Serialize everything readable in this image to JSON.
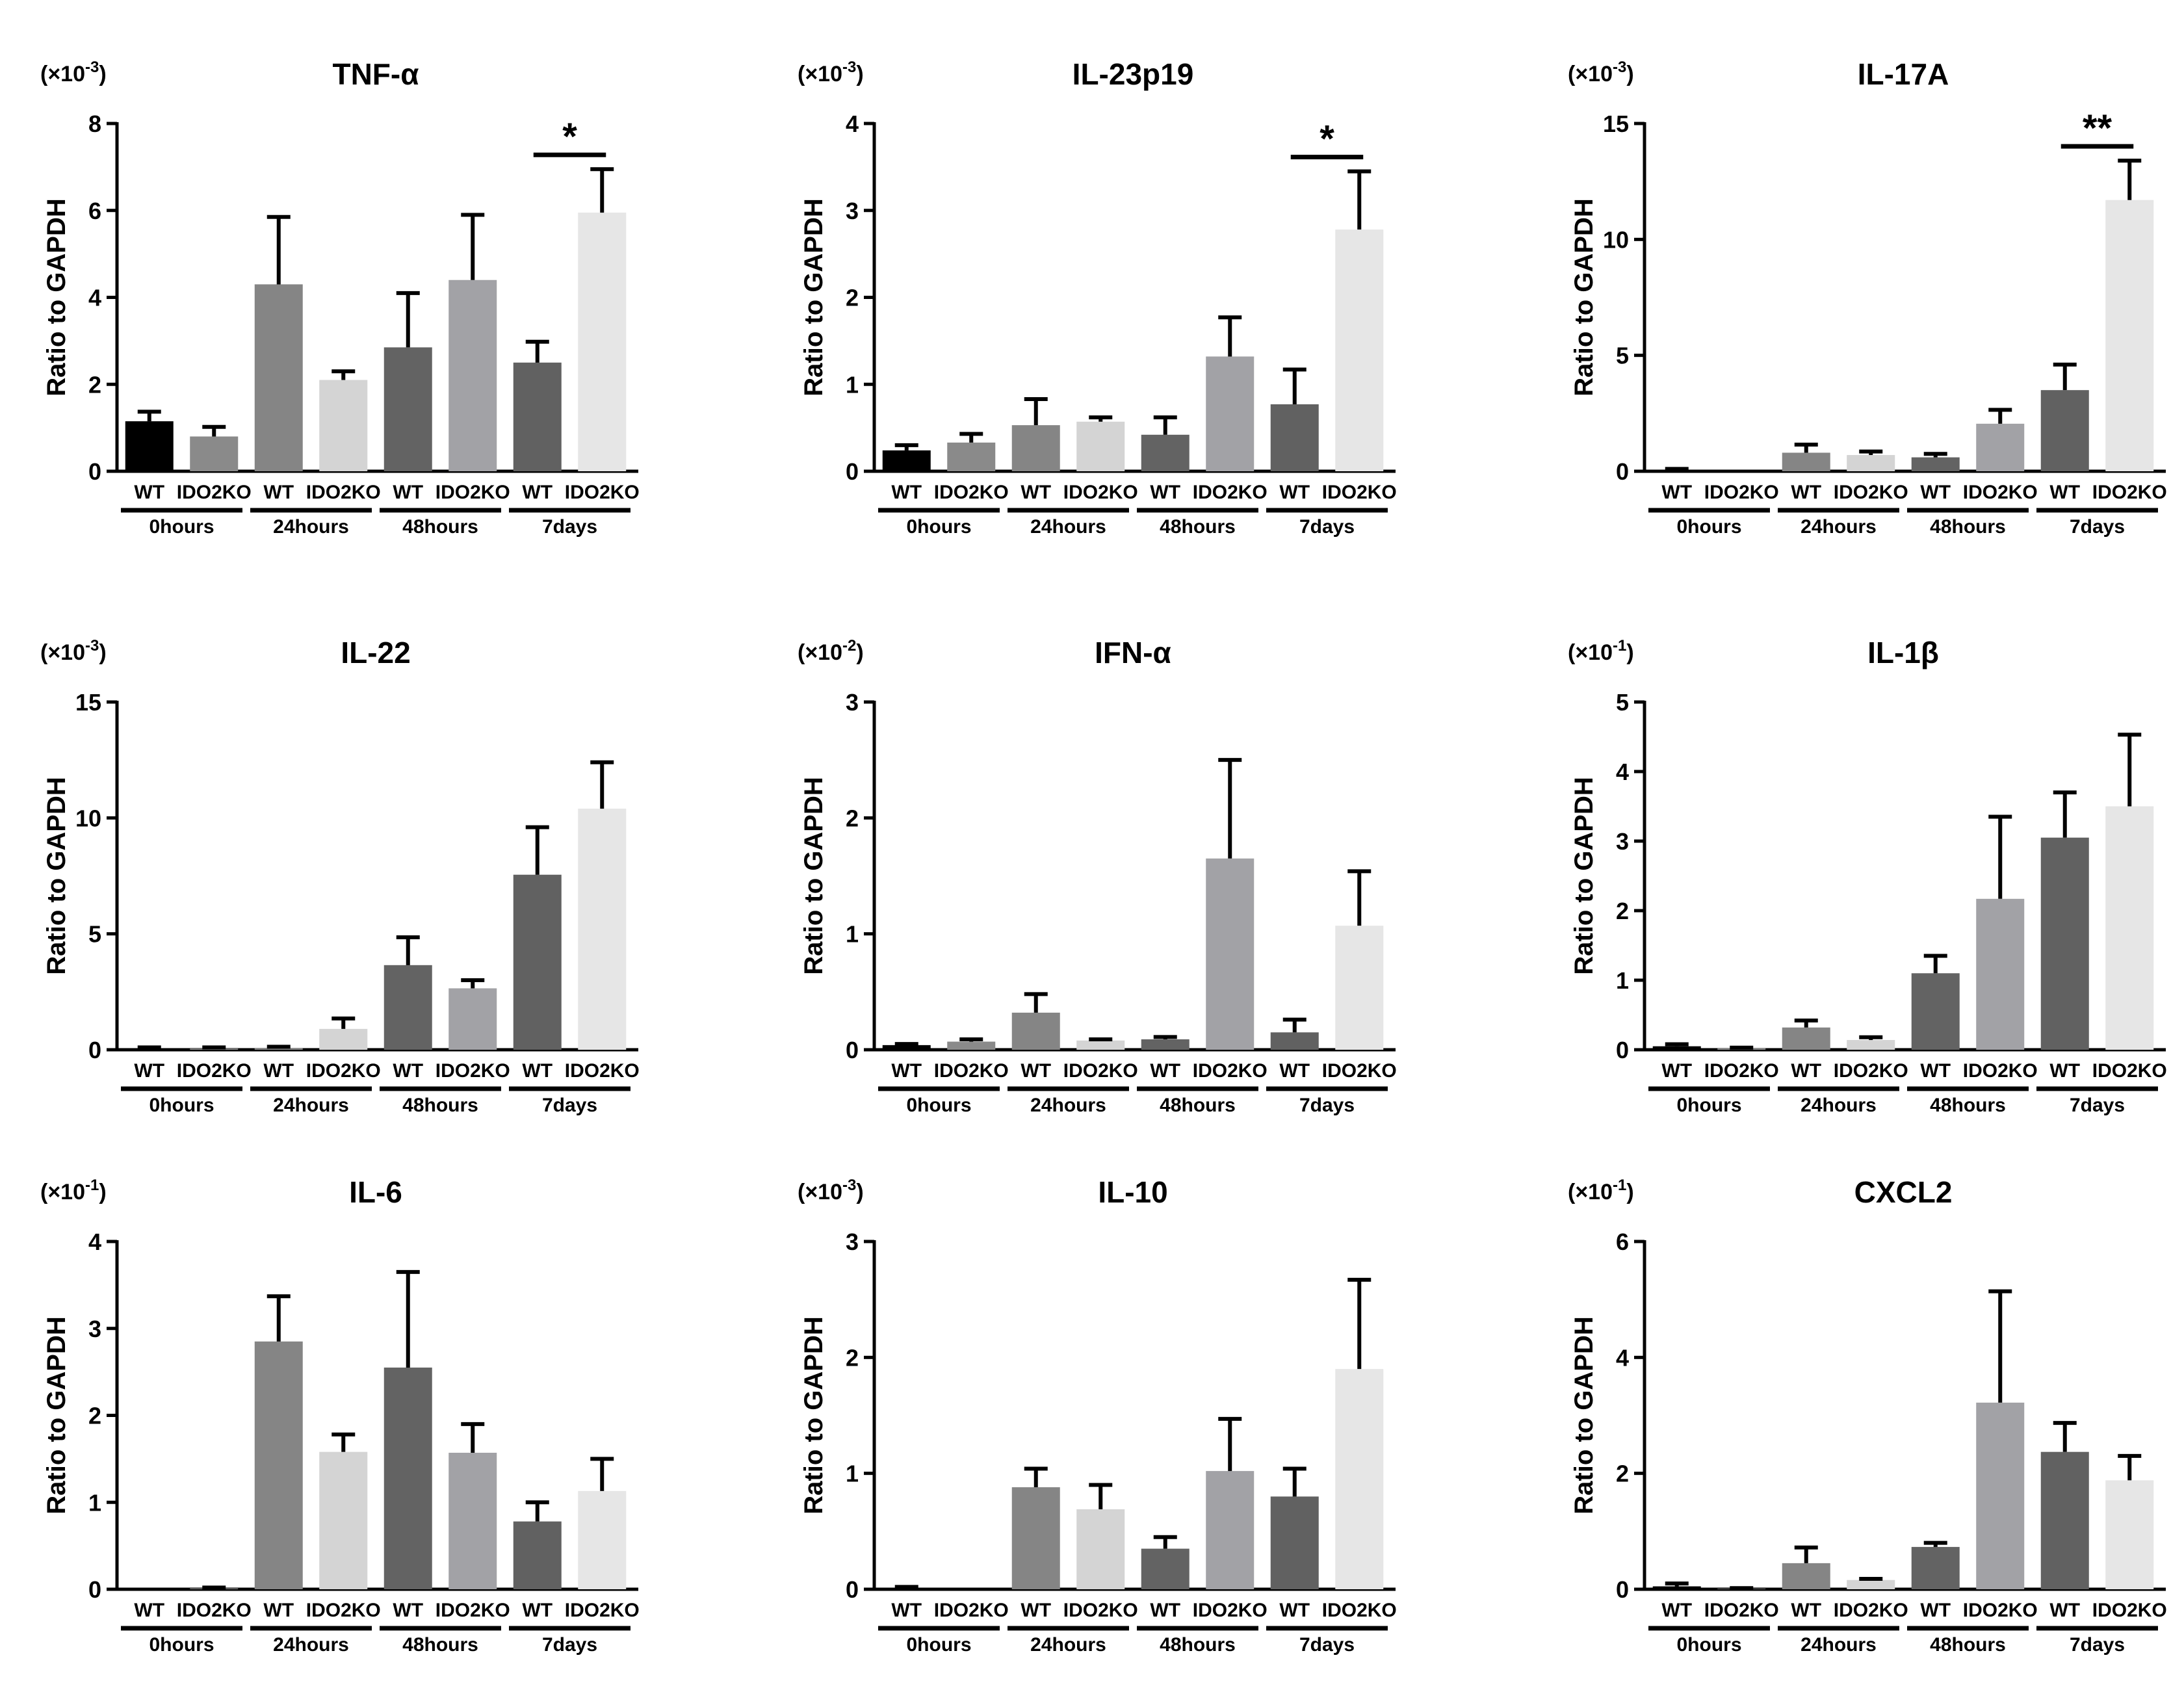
{
  "chart_data": [
    {
      "type": "bar",
      "title": "TNF-α",
      "scale_label": "(×10",
      "scale_exp": "-3",
      "ylabel": "Ratio to GAPDH",
      "ylim": [
        0,
        8
      ],
      "yticks": [
        "0",
        "2",
        "4",
        "6",
        "8"
      ],
      "categories": [
        "WT",
        "IDO2KO",
        "WT",
        "IDO2KO",
        "WT",
        "IDO2KO",
        "WT",
        "IDO2KO"
      ],
      "groups": [
        "0hours",
        "24hours",
        "48hours",
        "7days"
      ],
      "values": [
        1.15,
        0.8,
        4.3,
        2.1,
        2.85,
        4.4,
        2.5,
        5.95
      ],
      "errors": [
        0.22,
        0.22,
        1.55,
        0.2,
        1.25,
        1.5,
        0.48,
        1.0
      ],
      "significance": [
        {
          "bars": [
            6,
            7
          ],
          "label": "*"
        }
      ]
    },
    {
      "type": "bar",
      "title": "IL-23p19",
      "scale_label": "(×10",
      "scale_exp": "-3",
      "ylabel": "Ratio to GAPDH",
      "ylim": [
        0,
        4
      ],
      "yticks": [
        "0",
        "1",
        "2",
        "3",
        "4"
      ],
      "categories": [
        "WT",
        "IDO2KO",
        "WT",
        "IDO2KO",
        "WT",
        "IDO2KO",
        "WT",
        "IDO2KO"
      ],
      "groups": [
        "0hours",
        "24hours",
        "48hours",
        "7days"
      ],
      "values": [
        0.24,
        0.33,
        0.53,
        0.57,
        0.42,
        1.32,
        0.77,
        2.78
      ],
      "errors": [
        0.06,
        0.1,
        0.3,
        0.05,
        0.2,
        0.45,
        0.4,
        0.67
      ],
      "significance": [
        {
          "bars": [
            6,
            7
          ],
          "label": "*"
        }
      ]
    },
    {
      "type": "bar",
      "title": "IL-17A",
      "scale_label": "(×10",
      "scale_exp": "-3",
      "ylabel": "Ratio to GAPDH",
      "ylim": [
        0,
        15
      ],
      "yticks": [
        "0",
        "5",
        "10",
        "15"
      ],
      "categories": [
        "WT",
        "IDO2KO",
        "WT",
        "IDO2KO",
        "WT",
        "IDO2KO",
        "WT",
        "IDO2KO"
      ],
      "groups": [
        "0hours",
        "24hours",
        "48hours",
        "7days"
      ],
      "values": [
        0.05,
        0.0,
        0.8,
        0.7,
        0.6,
        2.05,
        3.5,
        11.7
      ],
      "errors": [
        0.05,
        0.0,
        0.35,
        0.15,
        0.15,
        0.6,
        1.1,
        1.7
      ],
      "significance": [
        {
          "bars": [
            6,
            7
          ],
          "label": "**"
        }
      ]
    },
    {
      "type": "bar",
      "title": "IL-22",
      "scale_label": "(×10",
      "scale_exp": "-3",
      "ylabel": "Ratio to GAPDH",
      "ylim": [
        0,
        15
      ],
      "yticks": [
        "0",
        "5",
        "10",
        "15"
      ],
      "categories": [
        "WT",
        "IDO2KO",
        "WT",
        "IDO2KO",
        "WT",
        "IDO2KO",
        "WT",
        "IDO2KO"
      ],
      "groups": [
        "0hours",
        "24hours",
        "48hours",
        "7days"
      ],
      "values": [
        0.05,
        0.05,
        0.08,
        0.9,
        3.65,
        2.65,
        7.55,
        10.4
      ],
      "errors": [
        0.05,
        0.05,
        0.05,
        0.45,
        1.2,
        0.35,
        2.05,
        2.0
      ],
      "significance": []
    },
    {
      "type": "bar",
      "title": "IFN-α",
      "scale_label": "(×10",
      "scale_exp": "-2",
      "ylabel": "Ratio to GAPDH",
      "ylim": [
        0,
        3
      ],
      "yticks": [
        "0",
        "1",
        "2",
        "3"
      ],
      "categories": [
        "WT",
        "IDO2KO",
        "WT",
        "IDO2KO",
        "WT",
        "IDO2KO",
        "WT",
        "IDO2KO"
      ],
      "groups": [
        "0hours",
        "24hours",
        "48hours",
        "7days"
      ],
      "values": [
        0.04,
        0.07,
        0.32,
        0.08,
        0.09,
        1.65,
        0.15,
        1.07
      ],
      "errors": [
        0.01,
        0.02,
        0.16,
        0.01,
        0.02,
        0.85,
        0.11,
        0.47
      ],
      "significance": []
    },
    {
      "type": "bar",
      "title": "IL-1β",
      "scale_label": "(×10",
      "scale_exp": "-1",
      "ylabel": "Ratio to GAPDH",
      "ylim": [
        0,
        5
      ],
      "yticks": [
        "0",
        "1",
        "2",
        "3",
        "4",
        "5"
      ],
      "categories": [
        "WT",
        "IDO2KO",
        "WT",
        "IDO2KO",
        "WT",
        "IDO2KO",
        "WT",
        "IDO2KO"
      ],
      "groups": [
        "0hours",
        "24hours",
        "48hours",
        "7days"
      ],
      "values": [
        0.05,
        0.02,
        0.32,
        0.14,
        1.1,
        2.17,
        3.05,
        3.5
      ],
      "errors": [
        0.03,
        0.01,
        0.1,
        0.04,
        0.25,
        1.18,
        0.65,
        1.03
      ],
      "significance": []
    },
    {
      "type": "bar",
      "title": "IL-6",
      "scale_label": "(×10",
      "scale_exp": "-1",
      "ylabel": "Ratio to GAPDH",
      "ylim": [
        0,
        4
      ],
      "yticks": [
        "0",
        "1",
        "2",
        "3",
        "4"
      ],
      "categories": [
        "WT",
        "IDO2KO",
        "WT",
        "IDO2KO",
        "WT",
        "IDO2KO",
        "WT",
        "IDO2KO"
      ],
      "groups": [
        "0hours",
        "24hours",
        "48hours",
        "7days"
      ],
      "values": [
        0.0,
        0.01,
        2.85,
        1.58,
        2.55,
        1.57,
        0.78,
        1.13
      ],
      "errors": [
        0.0,
        0.01,
        0.52,
        0.2,
        1.1,
        0.33,
        0.22,
        0.37
      ],
      "significance": []
    },
    {
      "type": "bar",
      "title": "IL-10",
      "scale_label": "(×10",
      "scale_exp": "-3",
      "ylabel": "Ratio to GAPDH",
      "ylim": [
        0,
        3
      ],
      "yticks": [
        "0",
        "1",
        "2",
        "3"
      ],
      "categories": [
        "WT",
        "IDO2KO",
        "WT",
        "IDO2KO",
        "WT",
        "IDO2KO",
        "WT",
        "IDO2KO"
      ],
      "groups": [
        "0hours",
        "24hours",
        "48hours",
        "7days"
      ],
      "values": [
        0.01,
        0.0,
        0.88,
        0.69,
        0.35,
        1.02,
        0.8,
        1.9
      ],
      "errors": [
        0.01,
        0.0,
        0.16,
        0.21,
        0.1,
        0.45,
        0.24,
        0.77
      ],
      "significance": []
    },
    {
      "type": "bar",
      "title": "CXCL2",
      "scale_label": "(×10",
      "scale_exp": "-1",
      "ylabel": "Ratio to GAPDH",
      "ylim": [
        0,
        6
      ],
      "yticks": [
        "0",
        "2",
        "4",
        "6"
      ],
      "categories": [
        "WT",
        "IDO2KO",
        "WT",
        "IDO2KO",
        "WT",
        "IDO2KO",
        "WT",
        "IDO2KO"
      ],
      "groups": [
        "0hours",
        "24hours",
        "48hours",
        "7days"
      ],
      "values": [
        0.05,
        0.01,
        0.45,
        0.16,
        0.73,
        3.22,
        2.37,
        1.88
      ],
      "errors": [
        0.05,
        0.01,
        0.27,
        0.02,
        0.07,
        1.92,
        0.5,
        0.42
      ],
      "significance": []
    }
  ],
  "bar_colors": [
    "#000000",
    "#8a8a8a",
    "#858585",
    "#d4d4d4",
    "#636363",
    "#a2a2a6",
    "#616161",
    "#e6e6e6"
  ]
}
